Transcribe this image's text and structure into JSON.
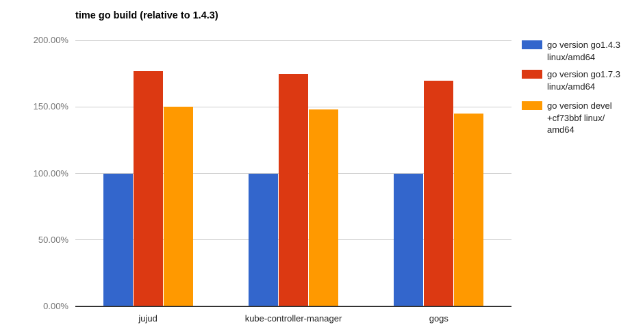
{
  "page": {
    "background": "#ffffff"
  },
  "chart_data": {
    "type": "bar",
    "title": "time go build (relative to 1.4.3)",
    "categories": [
      "jujud",
      "kube-controller-manager",
      "gogs"
    ],
    "series": [
      {
        "name": "go version go1.4.3 linux/amd64",
        "legend_lines": [
          "go version go1.4.3",
          "linux/amd64"
        ],
        "color": "#3366cc",
        "values": [
          100,
          100,
          100
        ]
      },
      {
        "name": "go version go1.7.3 linux/amd64",
        "legend_lines": [
          "go version go1.7.3",
          "linux/amd64"
        ],
        "color": "#dc3912",
        "values": [
          177,
          175,
          169.5
        ]
      },
      {
        "name": "go version devel +cf73bbf linux/amd64",
        "legend_lines": [
          "go version devel",
          "+cf73bbf linux/",
          "amd64"
        ],
        "color": "#ff9900",
        "values": [
          150,
          148,
          145
        ]
      }
    ],
    "xlabel": "",
    "ylabel": "",
    "ylim": [
      0,
      200
    ],
    "yticks": [
      {
        "value": 0,
        "label": "0.00%"
      },
      {
        "value": 50,
        "label": "50.00%"
      },
      {
        "value": 100,
        "label": "100.00%"
      },
      {
        "value": 150,
        "label": "150.00%"
      },
      {
        "value": 200,
        "label": "200.00%"
      }
    ],
    "grid": true,
    "legend_position": "right",
    "axis_colors": {
      "gridline": "#cccccc",
      "baseline": "#333333",
      "ytick_text": "#757575",
      "xtick_text": "#222222",
      "title_text": "#000000",
      "legend_text": "#222222"
    }
  }
}
